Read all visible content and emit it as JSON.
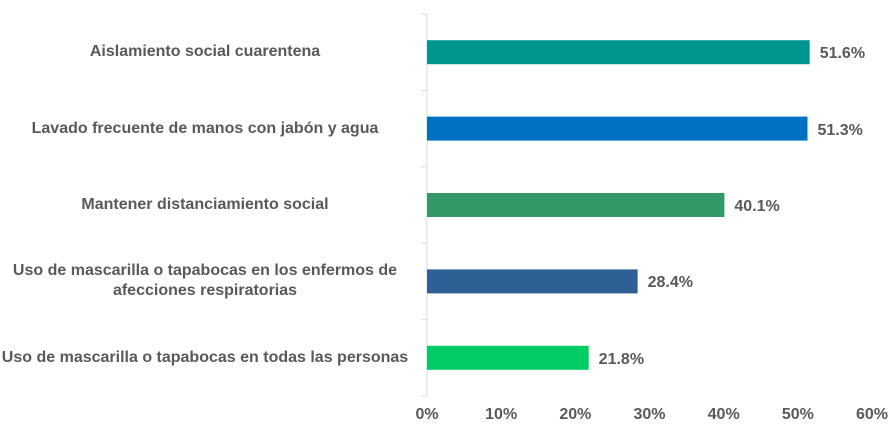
{
  "chart_data": {
    "type": "barh",
    "categories": [
      "Aislamiento social cuarentena",
      "Lavado frecuente de manos con jabón y agua",
      "Mantener distanciamiento social",
      "Uso de mascarilla o tapabocas en los enfermos de afecciones respiratorias",
      "Uso de mascarilla o tapabocas en todas las personas"
    ],
    "values": [
      51.6,
      51.3,
      40.1,
      28.4,
      21.8
    ],
    "value_labels": [
      "51.6%",
      "51.3%",
      "40.1%",
      "28.4%",
      "21.8%"
    ],
    "colors": [
      "#00968f",
      "#0070c0",
      "#339966",
      "#2e6096",
      "#00cc66"
    ],
    "xlim": [
      0,
      60
    ],
    "xticks": [
      {
        "value": 0,
        "label": "0%"
      },
      {
        "value": 10,
        "label": "10%"
      },
      {
        "value": 20,
        "label": "20%"
      },
      {
        "value": 30,
        "label": "30%"
      },
      {
        "value": 40,
        "label": "40%"
      },
      {
        "value": 50,
        "label": "50%"
      },
      {
        "value": 60,
        "label": "60%"
      }
    ]
  }
}
